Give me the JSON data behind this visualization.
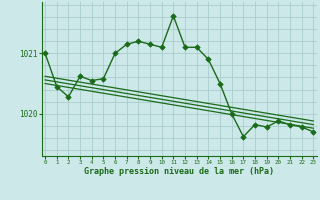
{
  "title": "Graphe pression niveau de la mer (hPa)",
  "bg_color": "#cce8e8",
  "grid_color": "#aacccc",
  "line_color": "#1a6b1a",
  "marker_color": "#1a6b1a",
  "x_ticks": [
    0,
    1,
    2,
    3,
    4,
    5,
    6,
    7,
    8,
    9,
    10,
    11,
    12,
    13,
    14,
    15,
    16,
    17,
    18,
    19,
    20,
    21,
    22,
    23
  ],
  "y_ticks": [
    1020,
    1021
  ],
  "xlim": [
    -0.3,
    23.3
  ],
  "ylim": [
    1019.3,
    1021.85
  ],
  "series_main": {
    "x": [
      0,
      1,
      2,
      3,
      4,
      5,
      6,
      7,
      8,
      9,
      10,
      11,
      12,
      13,
      14,
      15,
      16,
      17,
      18,
      19,
      20,
      21,
      22,
      23
    ],
    "y": [
      1021.0,
      1020.45,
      1020.28,
      1020.62,
      1020.55,
      1020.58,
      1021.0,
      1021.15,
      1021.2,
      1021.15,
      1021.1,
      1021.62,
      1021.1,
      1021.1,
      1020.9,
      1020.5,
      1020.0,
      1019.62,
      1019.82,
      1019.78,
      1019.88,
      1019.82,
      1019.78,
      1019.7
    ]
  },
  "trend1": {
    "x": [
      0,
      23
    ],
    "y": [
      1020.62,
      1019.88
    ]
  },
  "trend2": {
    "x": [
      0,
      23
    ],
    "y": [
      1020.56,
      1019.82
    ]
  },
  "trend3": {
    "x": [
      0,
      23
    ],
    "y": [
      1020.5,
      1019.76
    ]
  }
}
